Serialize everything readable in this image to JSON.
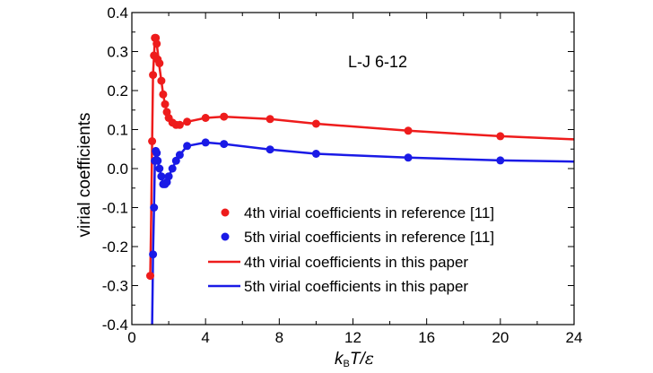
{
  "chart_data": {
    "type": "scatter",
    "title": "",
    "annotation": "L-J 6-12",
    "xlabel": {
      "k": "k",
      "sub": "B",
      "rest": "T/",
      "eps": "ε"
    },
    "ylabel": "virial coefficients",
    "xlim": [
      0,
      24
    ],
    "ylim": [
      -0.4,
      0.4
    ],
    "xticks": [
      0,
      4,
      8,
      12,
      16,
      20,
      24
    ],
    "xtick_labels": [
      "0",
      "4",
      "8",
      "12",
      "16",
      "20",
      "24"
    ],
    "yticks": [
      -0.4,
      -0.3,
      -0.2,
      -0.1,
      0.0,
      0.1,
      0.2,
      0.3,
      0.4
    ],
    "ytick_labels": [
      "-0.4",
      "-0.3",
      "-0.2",
      "-0.1",
      "0.0",
      "0.1",
      "0.2",
      "0.3",
      "0.4"
    ],
    "grid": false,
    "legend_position": "lower-center",
    "colors": {
      "fourth": "#ee1c1c",
      "fifth": "#1a1ae6"
    },
    "series": [
      {
        "name": "4th virial coefficients in reference [11]",
        "kind": "markers",
        "color": "#ee1c1c",
        "x": [
          1.0,
          1.1,
          1.15,
          1.2,
          1.25,
          1.3,
          1.35,
          1.4,
          1.5,
          1.6,
          1.7,
          1.8,
          1.9,
          2.0,
          2.2,
          2.4,
          2.6,
          3.0,
          4.0,
          5.0,
          7.5,
          10.0,
          15.0,
          20.0
        ],
        "y": [
          -0.275,
          0.07,
          0.24,
          0.29,
          0.335,
          0.335,
          0.32,
          0.28,
          0.27,
          0.225,
          0.19,
          0.165,
          0.145,
          0.13,
          0.118,
          0.112,
          0.112,
          0.12,
          0.13,
          0.133,
          0.127,
          0.115,
          0.097,
          0.083
        ]
      },
      {
        "name": "5th virial coefficients in reference [11]",
        "kind": "markers",
        "color": "#1a1ae6",
        "x": [
          1.15,
          1.2,
          1.25,
          1.3,
          1.35,
          1.4,
          1.5,
          1.6,
          1.7,
          1.8,
          1.9,
          2.0,
          2.2,
          2.4,
          2.6,
          3.0,
          4.0,
          5.0,
          7.5,
          10.0,
          15.0,
          20.0
        ],
        "y": [
          -0.22,
          -0.1,
          0.02,
          0.045,
          0.04,
          0.02,
          0.0,
          -0.02,
          -0.04,
          -0.04,
          -0.035,
          -0.02,
          0.0,
          0.02,
          0.035,
          0.058,
          0.067,
          0.063,
          0.049,
          0.038,
          0.028,
          0.021
        ]
      },
      {
        "name": "4th virial coefficients in this paper",
        "kind": "line",
        "color": "#ee1c1c",
        "x": [
          1.0,
          1.05,
          1.1,
          1.15,
          1.2,
          1.25,
          1.3,
          1.35,
          1.4,
          1.5,
          1.6,
          1.7,
          1.8,
          1.9,
          2.0,
          2.2,
          2.4,
          2.6,
          3.0,
          4.0,
          5.0,
          7.5,
          10.0,
          15.0,
          20.0,
          24.0
        ],
        "y": [
          -0.275,
          -0.12,
          0.07,
          0.24,
          0.29,
          0.33,
          0.335,
          0.32,
          0.3,
          0.26,
          0.225,
          0.19,
          0.165,
          0.145,
          0.13,
          0.118,
          0.112,
          0.112,
          0.12,
          0.13,
          0.133,
          0.127,
          0.115,
          0.097,
          0.083,
          0.075
        ]
      },
      {
        "name": "5th virial coefficients in this paper",
        "kind": "line",
        "color": "#1a1ae6",
        "x": [
          1.1,
          1.13,
          1.15,
          1.2,
          1.25,
          1.3,
          1.35,
          1.4,
          1.5,
          1.6,
          1.7,
          1.8,
          1.9,
          2.0,
          2.2,
          2.4,
          2.6,
          3.0,
          4.0,
          5.0,
          7.5,
          10.0,
          15.0,
          20.0,
          24.0
        ],
        "y": [
          -0.4,
          -0.3,
          -0.22,
          -0.1,
          0.02,
          0.045,
          0.04,
          0.025,
          0.0,
          -0.02,
          -0.04,
          -0.04,
          -0.035,
          -0.02,
          0.0,
          0.02,
          0.035,
          0.058,
          0.067,
          0.063,
          0.049,
          0.038,
          0.028,
          0.021,
          0.018
        ]
      }
    ]
  }
}
